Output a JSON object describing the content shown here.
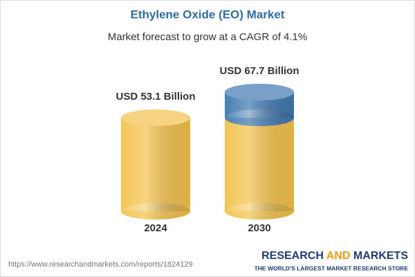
{
  "chart_data": {
    "type": "cylinder",
    "title": "Ethylene Oxide (EO) Market",
    "subtitle": "Market forecast to grow at a CAGR of 4.1%",
    "categories": [
      "2024",
      "2030"
    ],
    "values": [
      53.1,
      67.7
    ],
    "value_labels": [
      "USD 53.1 Billion",
      "USD 67.7 Billion"
    ],
    "color": "#f3c14b",
    "growth_color": "#3f78b0"
  },
  "footer": {
    "url": "https://www.researchandmarkets.com/reports/1824129",
    "brand_parts": [
      "RESEARCH",
      "AND",
      "MARKETS"
    ],
    "tagline": "THE WORLD'S LARGEST MARKET RESEARCH STORE"
  }
}
